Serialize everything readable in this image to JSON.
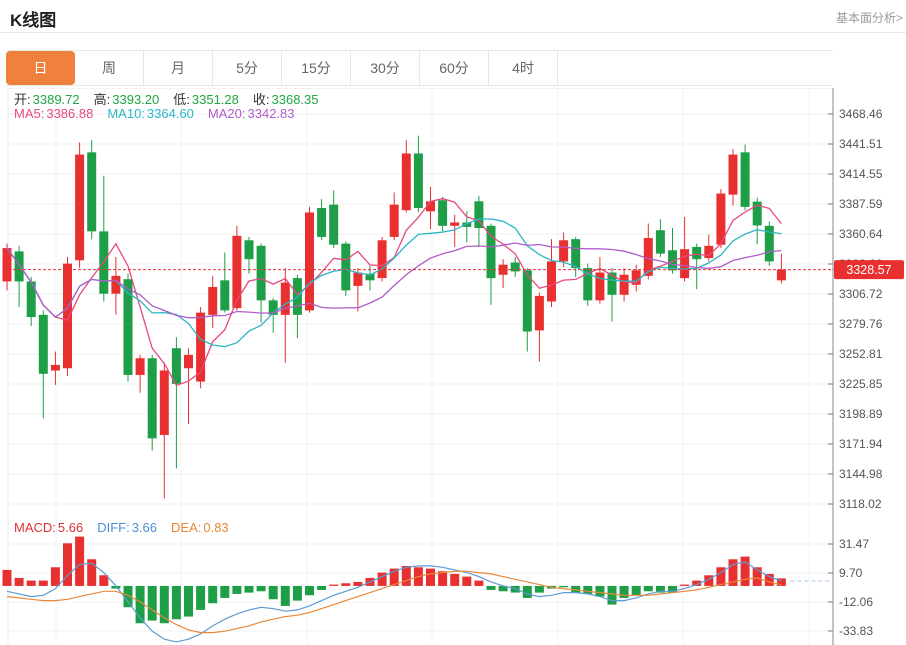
{
  "header": {
    "title": "K线图",
    "link": "基本面分析>"
  },
  "tabs": {
    "items": [
      "日",
      "周",
      "月",
      "5分",
      "15分",
      "30分",
      "60分",
      "4时"
    ],
    "selected_index": 0,
    "selected_color": "#f0813c"
  },
  "overlay": {
    "ohlc": [
      {
        "label": "开:",
        "value": "3389.72"
      },
      {
        "label": "高:",
        "value": "3393.20"
      },
      {
        "label": "低:",
        "value": "3351.28"
      },
      {
        "label": "收:",
        "value": "3368.35"
      }
    ],
    "ohlc_value_color": "#21a643",
    "ma": [
      {
        "label": "MA5:",
        "value": "3386.88",
        "color": "#e8497f"
      },
      {
        "label": "MA10:",
        "value": "3364.60",
        "color": "#2ab6c5"
      },
      {
        "label": "MA20:",
        "value": "3342.83",
        "color": "#b05cc9"
      }
    ]
  },
  "macd_header": [
    {
      "label": "MACD:",
      "value": "5.66",
      "color": "#e03131"
    },
    {
      "label": "DIFF:",
      "value": "3.66",
      "color": "#4a90d9"
    },
    {
      "label": "DEA:",
      "value": "0.83",
      "color": "#e8893a"
    }
  ],
  "chart_data": {
    "type": "candlestick+macd",
    "title": "K线图",
    "legend_position": "none",
    "grid": true,
    "price_axis": {
      "ticks": [
        3468.46,
        3441.51,
        3414.55,
        3387.59,
        3360.64,
        3333.68,
        3306.72,
        3279.76,
        3252.81,
        3225.85,
        3198.89,
        3171.94,
        3144.98,
        3118.02
      ]
    },
    "macd_axis": {
      "ticks": [
        31.47,
        9.7,
        -12.06,
        -33.83
      ]
    },
    "last_price": "3328.57",
    "candles_ohlc": [
      [
        3318,
        3352,
        3310,
        3348
      ],
      [
        3345,
        3350,
        3295,
        3318
      ],
      [
        3318,
        3322,
        3278,
        3286
      ],
      [
        3288,
        3292,
        3195,
        3235
      ],
      [
        3238,
        3255,
        3225,
        3243
      ],
      [
        3240,
        3340,
        3233,
        3334
      ],
      [
        3337,
        3443,
        3330,
        3432
      ],
      [
        3434,
        3445,
        3356,
        3363
      ],
      [
        3363,
        3413,
        3300,
        3307
      ],
      [
        3307,
        3340,
        3288,
        3323
      ],
      [
        3320,
        3325,
        3228,
        3234
      ],
      [
        3234,
        3252,
        3218,
        3249
      ],
      [
        3249,
        3252,
        3166,
        3177
      ],
      [
        3180,
        3245,
        3123,
        3238
      ],
      [
        3258,
        3268,
        3150,
        3226
      ],
      [
        3240,
        3258,
        3190,
        3252
      ],
      [
        3228,
        3295,
        3222,
        3290
      ],
      [
        3288,
        3323,
        3276,
        3313
      ],
      [
        3319,
        3344,
        3290,
        3292
      ],
      [
        3294,
        3368,
        3292,
        3359
      ],
      [
        3355,
        3358,
        3325,
        3338
      ],
      [
        3350,
        3352,
        3281,
        3301
      ],
      [
        3301,
        3303,
        3272,
        3288
      ],
      [
        3288,
        3330,
        3245,
        3317
      ],
      [
        3321,
        3324,
        3267,
        3288
      ],
      [
        3292,
        3385,
        3290,
        3380
      ],
      [
        3384,
        3392,
        3355,
        3358
      ],
      [
        3387,
        3400,
        3348,
        3351
      ],
      [
        3352,
        3354,
        3305,
        3310
      ],
      [
        3314,
        3330,
        3291,
        3326
      ],
      [
        3325,
        3332,
        3310,
        3319
      ],
      [
        3321,
        3358,
        3318,
        3355
      ],
      [
        3358,
        3398,
        3355,
        3387
      ],
      [
        3382,
        3445,
        3380,
        3433
      ],
      [
        3433,
        3449,
        3380,
        3384
      ],
      [
        3381,
        3403,
        3365,
        3390
      ],
      [
        3391,
        3394,
        3363,
        3368
      ],
      [
        3368,
        3378,
        3349,
        3371
      ],
      [
        3371,
        3381,
        3353,
        3367
      ],
      [
        3390,
        3395,
        3350,
        3366
      ],
      [
        3368,
        3370,
        3297,
        3321
      ],
      [
        3324,
        3338,
        3312,
        3333
      ],
      [
        3335,
        3340,
        3322,
        3327
      ],
      [
        3328,
        3330,
        3255,
        3273
      ],
      [
        3274,
        3308,
        3246,
        3305
      ],
      [
        3300,
        3356,
        3295,
        3336
      ],
      [
        3336,
        3362,
        3331,
        3355
      ],
      [
        3356,
        3358,
        3322,
        3330
      ],
      [
        3330,
        3334,
        3296,
        3301
      ],
      [
        3301,
        3340,
        3298,
        3326
      ],
      [
        3326,
        3330,
        3282,
        3306
      ],
      [
        3306,
        3330,
        3300,
        3324
      ],
      [
        3315,
        3333,
        3309,
        3328
      ],
      [
        3323,
        3370,
        3320,
        3357
      ],
      [
        3364,
        3374,
        3340,
        3343
      ],
      [
        3346,
        3366,
        3325,
        3328
      ],
      [
        3321,
        3376,
        3318,
        3347
      ],
      [
        3349,
        3352,
        3311,
        3338
      ],
      [
        3339,
        3360,
        3336,
        3350
      ],
      [
        3351,
        3401,
        3348,
        3397
      ],
      [
        3396,
        3437,
        3386,
        3432
      ],
      [
        3434,
        3441,
        3382,
        3385
      ],
      [
        3389.72,
        3393.2,
        3351.28,
        3368.35
      ],
      [
        3368,
        3372,
        3332,
        3336
      ],
      [
        3319,
        3343,
        3316,
        3328.57
      ]
    ],
    "ma_periods": [
      5,
      10,
      20
    ],
    "macd_hist": [
      12,
      6,
      4,
      4,
      14,
      32,
      37,
      20,
      8,
      -2,
      -16,
      -28,
      -26,
      -28,
      -25,
      -23,
      -18,
      -13,
      -9,
      -6,
      -5,
      -4,
      -10,
      -15,
      -11,
      -7,
      -3,
      1,
      2,
      3,
      6,
      10,
      13,
      15,
      14,
      13,
      11,
      9,
      7,
      4,
      -3,
      -4,
      -5,
      -9,
      -5,
      -2,
      -1,
      -5,
      -6,
      -8,
      -14,
      -9,
      -7,
      -4,
      -5,
      -5,
      1,
      4,
      8,
      14,
      20,
      22,
      14,
      9,
      5.66
    ],
    "diff_line": [
      -4,
      -6,
      -8,
      -7,
      -2,
      8,
      16,
      17,
      10,
      0,
      -12,
      -24,
      -34,
      -40,
      -42,
      -40,
      -36,
      -30,
      -25,
      -21,
      -18,
      -16,
      -17,
      -19,
      -18,
      -15,
      -11,
      -7,
      -4,
      -1,
      3,
      7,
      11,
      14,
      15,
      15,
      14,
      12,
      10,
      7,
      3,
      0,
      -2,
      -6,
      -8,
      -7,
      -5,
      -5,
      -6,
      -8,
      -11,
      -11,
      -9,
      -6,
      -4,
      -4,
      -2,
      1,
      5,
      10,
      16,
      18,
      12,
      7,
      3.66
    ],
    "dea_line": [
      -8,
      -9,
      -10,
      -11,
      -11,
      -10,
      -8,
      -6,
      -4,
      -4,
      -7,
      -12,
      -18,
      -24,
      -29,
      -33,
      -35,
      -35,
      -34,
      -32,
      -30,
      -27,
      -25,
      -23,
      -22,
      -20,
      -17,
      -14,
      -11,
      -8,
      -5,
      -2,
      1,
      4,
      7,
      9,
      10,
      11,
      11,
      10,
      9,
      7,
      5,
      3,
      1,
      -1,
      -2,
      -3,
      -4,
      -5,
      -6,
      -7,
      -7,
      -7,
      -6,
      -5,
      -4,
      -3,
      -1,
      1,
      3,
      5,
      6,
      3,
      0.83
    ],
    "colors": {
      "up": "#e93030",
      "down": "#1d9e47",
      "ma5": "#e8497f",
      "ma10": "#2ab6c5",
      "ma20": "#b05cc9",
      "diff": "#5b9bd5",
      "dea": "#e8893a",
      "badge": "#e93030",
      "dashed_line": "#e93030",
      "grid": "#f0f0f0",
      "axis": "#888",
      "axis_text": "#555"
    }
  }
}
